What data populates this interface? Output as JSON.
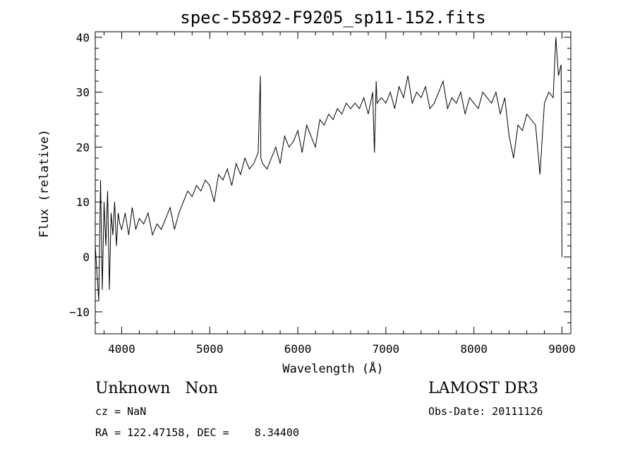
{
  "chart_data": {
    "type": "line",
    "title": "spec-55892-F9205_sp11-152.fits",
    "xlabel": "Wavelength (Å)",
    "ylabel": "Flux (relative)",
    "xlim": [
      3700,
      9100
    ],
    "ylim": [
      -14,
      41
    ],
    "x_ticks": [
      4000,
      5000,
      6000,
      7000,
      8000,
      9000
    ],
    "y_ticks": [
      -10,
      0,
      10,
      20,
      30,
      40
    ],
    "grid": false,
    "series": [
      {
        "x": [
          3700,
          3740,
          3760,
          3780,
          3800,
          3820,
          3840,
          3860,
          3880,
          3900,
          3920,
          3940,
          3960,
          3980,
          4000,
          4040,
          4080,
          4120,
          4160,
          4200,
          4250,
          4300,
          4350,
          4400,
          4450,
          4500,
          4550,
          4600,
          4650,
          4700,
          4750,
          4800,
          4850,
          4900,
          4950,
          5000,
          5050,
          5100,
          5150,
          5200,
          5250,
          5300,
          5350,
          5400,
          5450,
          5500,
          5550,
          5575,
          5580,
          5600,
          5650,
          5700,
          5750,
          5800,
          5850,
          5900,
          5950,
          6000,
          6050,
          6100,
          6150,
          6200,
          6250,
          6300,
          6350,
          6400,
          6450,
          6500,
          6550,
          6600,
          6650,
          6700,
          6750,
          6800,
          6850,
          6870,
          6890,
          6900,
          6950,
          7000,
          7050,
          7100,
          7150,
          7200,
          7250,
          7300,
          7350,
          7400,
          7450,
          7500,
          7550,
          7600,
          7650,
          7700,
          7750,
          7800,
          7850,
          7900,
          7950,
          8000,
          8050,
          8100,
          8150,
          8200,
          8250,
          8300,
          8350,
          8400,
          8450,
          8500,
          8550,
          8600,
          8650,
          8700,
          8750,
          8800,
          8850,
          8900,
          8930,
          8960,
          8990,
          9000
        ],
        "y": [
          2,
          -8,
          14,
          -6,
          10,
          2,
          12,
          -6,
          8,
          4,
          10,
          2,
          8,
          6,
          5,
          8,
          4,
          9,
          5,
          7,
          6,
          8,
          4,
          6,
          5,
          7,
          9,
          5,
          8,
          10,
          12,
          11,
          13,
          12,
          14,
          13,
          10,
          15,
          14,
          16,
          13,
          17,
          15,
          18,
          16,
          17,
          19,
          33,
          18,
          17,
          16,
          18,
          20,
          17,
          22,
          20,
          21,
          23,
          19,
          24,
          22,
          20,
          25,
          24,
          26,
          25,
          27,
          26,
          28,
          27,
          28,
          27,
          29,
          26,
          30,
          19,
          32,
          28,
          29,
          28,
          30,
          27,
          31,
          29,
          33,
          28,
          30,
          29,
          31,
          27,
          28,
          30,
          32,
          27,
          29,
          28,
          30,
          26,
          29,
          28,
          27,
          30,
          29,
          28,
          30,
          26,
          29,
          22,
          18,
          24,
          23,
          26,
          25,
          24,
          15,
          28,
          30,
          29,
          40,
          33,
          35,
          0
        ]
      }
    ]
  },
  "annotations": {
    "left_line1": "Unknown   Non",
    "left_line2": "cz = NaN",
    "left_line3": "RA = 122.47158, DEC =    8.34400",
    "right_line1": "LAMOST DR3",
    "right_line2": "Obs-Date: 20111126"
  }
}
